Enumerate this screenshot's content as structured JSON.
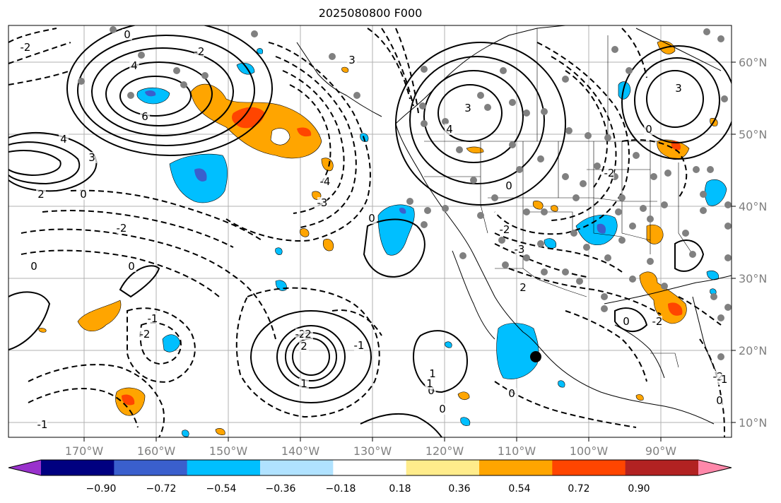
{
  "title": "2025080800 F000",
  "map": {
    "lon_range": [
      -178,
      -78
    ],
    "lat_range": [
      8,
      66
    ],
    "lon_labels": [
      "170°W",
      "160°W",
      "150°W",
      "140°W",
      "130°W",
      "120°W",
      "110°W",
      "100°W",
      "90°W"
    ],
    "lat_labels": [
      "10°N",
      "20°N",
      "30°N",
      "40°N",
      "50°N",
      "60°N"
    ],
    "contour_labels": [
      "-2",
      "0",
      "4",
      "6",
      "4",
      "3",
      "-2",
      "2",
      "0",
      "-2",
      "-4",
      "-3",
      "0",
      "-2",
      "0",
      "0",
      "-1",
      "-2",
      "2",
      "2",
      "-1",
      "0",
      "1",
      "3",
      "4",
      "-2",
      "-2",
      "0",
      "3",
      "-3",
      "0",
      "-2",
      "0",
      "3",
      "2",
      "0",
      "-2",
      "0",
      "1",
      "-1",
      "1",
      "-1",
      "0"
    ],
    "observation_station_marker": {
      "lon": -106.8,
      "lat": 19.2
    },
    "shaded_colors": {
      "positive_light": "#ffa500",
      "positive_strong": "#ff4500",
      "negative_light": "#00bfff",
      "negative_strong": "#3a5fcd"
    }
  },
  "colorbar": {
    "ticks": [
      "−0.90",
      "−0.72",
      "−0.54",
      "−0.36",
      "−0.18",
      "0.18",
      "0.36",
      "0.54",
      "0.72",
      "0.90"
    ],
    "colors": [
      "#9932cc",
      "#000080",
      "#3a5fcd",
      "#00bfff",
      "#b0e2ff",
      "#ffffff",
      "#ffec8b",
      "#ffa500",
      "#ff4500",
      "#b22222",
      "#ff88aa"
    ]
  }
}
